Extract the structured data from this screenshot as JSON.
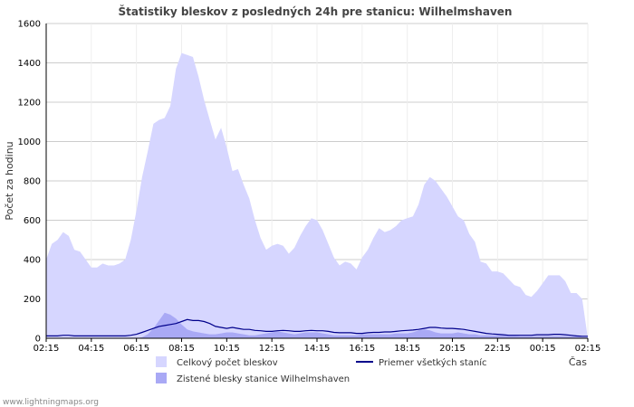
{
  "chart_data": {
    "type": "area",
    "title": "Štatistiky bleskov z posledných 24h pre stanicu: Wilhelmshaven",
    "ylabel": "Počet za hodinu",
    "xlabel": "Čas",
    "ylim": [
      0,
      1600
    ],
    "yticks": [
      0,
      200,
      400,
      600,
      800,
      1000,
      1200,
      1400,
      1600
    ],
    "xticks": [
      "02:15",
      "04:15",
      "06:15",
      "08:15",
      "10:15",
      "12:15",
      "14:15",
      "16:15",
      "18:15",
      "20:15",
      "22:15",
      "00:15",
      "02:15"
    ],
    "x_hours": [
      0,
      0.25,
      0.5,
      0.75,
      1,
      1.25,
      1.5,
      1.75,
      2,
      2.25,
      2.5,
      2.75,
      3,
      3.25,
      3.5,
      3.75,
      4,
      4.25,
      4.5,
      4.75,
      5,
      5.25,
      5.5,
      5.75,
      6,
      6.25,
      6.5,
      6.75,
      7,
      7.25,
      7.5,
      7.75,
      8,
      8.25,
      8.5,
      8.75,
      9,
      9.25,
      9.5,
      9.75,
      10,
      10.25,
      10.5,
      10.75,
      11,
      11.25,
      11.5,
      11.75,
      12,
      12.25,
      12.5,
      12.75,
      13,
      13.25,
      13.5,
      13.75,
      14,
      14.25,
      14.5,
      14.75,
      15,
      15.25,
      15.5,
      15.75,
      16,
      16.25,
      16.5,
      16.75,
      17,
      17.25,
      17.5,
      17.75,
      18,
      18.25,
      18.5,
      18.75,
      19,
      19.25,
      19.5,
      19.75,
      20,
      20.25,
      20.5,
      20.75,
      21,
      21.25,
      21.5,
      21.75,
      22,
      22.25,
      22.5,
      22.75,
      23,
      23.25,
      23.5,
      23.75,
      24
    ],
    "series": [
      {
        "name": "Celkový počet bleskov",
        "style": "area",
        "color": "#d6d6ff",
        "values": [
          400,
          480,
          500,
          540,
          520,
          450,
          440,
          400,
          360,
          360,
          380,
          370,
          370,
          380,
          400,
          500,
          650,
          820,
          950,
          1090,
          1110,
          1120,
          1180,
          1370,
          1450,
          1440,
          1430,
          1330,
          1210,
          1110,
          1010,
          1070,
          970,
          850,
          860,
          780,
          710,
          600,
          510,
          450,
          470,
          480,
          470,
          430,
          460,
          520,
          570,
          610,
          600,
          550,
          480,
          410,
          370,
          390,
          380,
          350,
          410,
          450,
          510,
          560,
          540,
          550,
          570,
          600,
          610,
          620,
          680,
          780,
          820,
          800,
          760,
          720,
          670,
          620,
          600,
          530,
          490,
          390,
          380,
          340,
          340,
          330,
          300,
          270,
          260,
          220,
          210,
          240,
          280,
          320,
          320,
          320,
          290,
          230,
          230,
          200
        ]
      },
      {
        "name": "Zistené blesky stanice Wilhelmshaven",
        "style": "area",
        "color": "#a9a9f5",
        "values": [
          0,
          0,
          0,
          0,
          0,
          0,
          0,
          0,
          0,
          0,
          0,
          0,
          0,
          0,
          0,
          0,
          0,
          5,
          20,
          50,
          90,
          130,
          120,
          100,
          70,
          45,
          35,
          30,
          25,
          20,
          20,
          25,
          30,
          30,
          25,
          20,
          15,
          15,
          20,
          25,
          30,
          35,
          30,
          25,
          20,
          25,
          30,
          30,
          30,
          25,
          20,
          15,
          15,
          15,
          15,
          15,
          20,
          20,
          20,
          20,
          20,
          20,
          25,
          25,
          25,
          30,
          40,
          45,
          40,
          30,
          25,
          25,
          25,
          30,
          25,
          20,
          20,
          15,
          15,
          15,
          15,
          15,
          15,
          15,
          10,
          10,
          10,
          10,
          10,
          10,
          10,
          10,
          10,
          10,
          10,
          5,
          5
        ]
      },
      {
        "name": "Priemer všetkých staníc",
        "style": "line",
        "color": "#00008b",
        "values": [
          12,
          12,
          12,
          15,
          15,
          12,
          12,
          12,
          12,
          12,
          12,
          12,
          12,
          12,
          12,
          15,
          20,
          30,
          40,
          50,
          60,
          65,
          70,
          75,
          85,
          95,
          90,
          90,
          85,
          75,
          60,
          55,
          50,
          55,
          50,
          45,
          45,
          40,
          38,
          35,
          35,
          38,
          40,
          38,
          35,
          35,
          38,
          40,
          38,
          38,
          35,
          30,
          28,
          28,
          28,
          25,
          25,
          28,
          30,
          30,
          32,
          32,
          35,
          38,
          40,
          42,
          45,
          50,
          55,
          55,
          52,
          50,
          50,
          48,
          45,
          40,
          35,
          30,
          25,
          22,
          20,
          18,
          15,
          15,
          15,
          15,
          15,
          18,
          18,
          18,
          20,
          20,
          18,
          15,
          12,
          10,
          10
        ]
      }
    ]
  },
  "legend": [
    {
      "label": "Celkový počet bleskov",
      "color": "#d6d6ff",
      "kind": "box"
    },
    {
      "label": "Zistené blesky stanice Wilhelmshaven",
      "color": "#a9a9f5",
      "kind": "box"
    },
    {
      "label": "Priemer všetkých staníc",
      "color": "#00008b",
      "kind": "line"
    }
  ],
  "footer": {
    "credit": "www.lightningmaps.org"
  }
}
